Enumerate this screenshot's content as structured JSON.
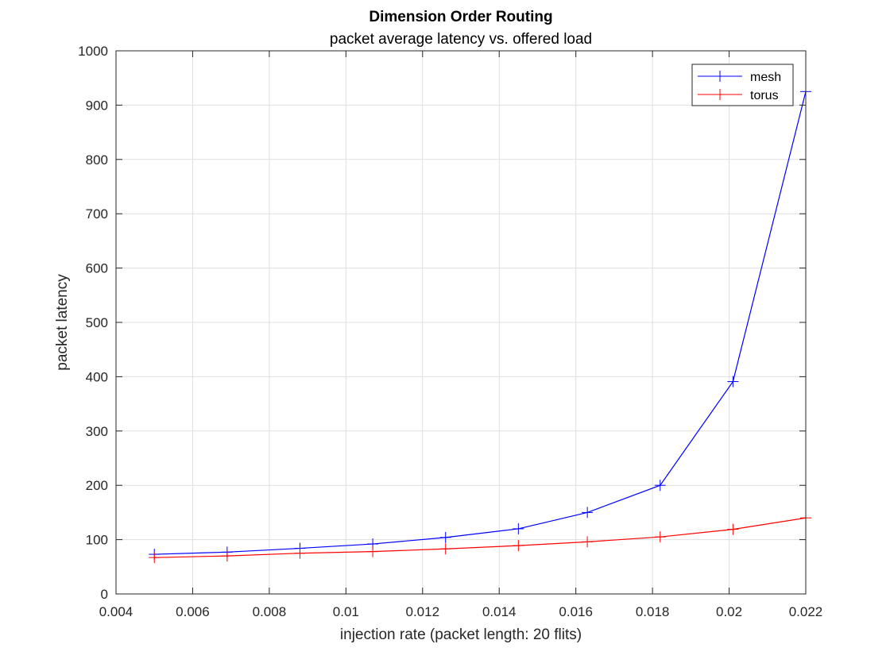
{
  "chart_data": {
    "type": "line",
    "title": "Dimension Order Routing",
    "subtitle": "packet average latency vs. offered load",
    "xlabel": "injection rate (packet length: 20 flits)",
    "ylabel": "packet latency",
    "xlim": [
      0.004,
      0.022
    ],
    "ylim": [
      0,
      1000
    ],
    "xticks": [
      0.004,
      0.006,
      0.008,
      0.01,
      0.012,
      0.014,
      0.016,
      0.018,
      0.02,
      0.022
    ],
    "xtick_labels": [
      "0.004",
      "0.006",
      "0.008",
      "0.01",
      "0.012",
      "0.014",
      "0.016",
      "0.018",
      "0.02",
      "0.022"
    ],
    "yticks": [
      0,
      100,
      200,
      300,
      400,
      500,
      600,
      700,
      800,
      900,
      1000
    ],
    "ytick_labels": [
      "0",
      "100",
      "200",
      "300",
      "400",
      "500",
      "600",
      "700",
      "800",
      "900",
      "1000"
    ],
    "grid": true,
    "legend_position": "top-right",
    "marker": "plus",
    "x": [
      0.005,
      0.0069,
      0.0088,
      0.0107,
      0.0126,
      0.0145,
      0.0163,
      0.0182,
      0.0201,
      0.022
    ],
    "series": [
      {
        "name": "mesh",
        "color": "#0000ff",
        "values": [
          73,
          77,
          84,
          92,
          104,
          120,
          150,
          200,
          391,
          925
        ]
      },
      {
        "name": "torus",
        "color": "#ff0000",
        "values": [
          67,
          70,
          75,
          78,
          83,
          89,
          96,
          105,
          119,
          140
        ]
      }
    ]
  }
}
